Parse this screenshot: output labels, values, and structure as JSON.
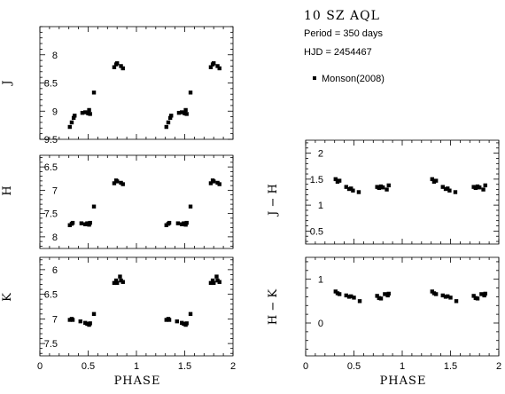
{
  "header": {
    "star_name": "10 SZ AQL",
    "period_text": "Period = 350 days",
    "hjd_text": "HJD = 2454467",
    "legend_label": "Monson(2008)"
  },
  "x_axis_label": "PHASE",
  "chart_data": [
    {
      "type": "scatter",
      "name": "J",
      "ylabel": "J",
      "xlim": [
        0,
        2
      ],
      "ylim": [
        9.5,
        7.5
      ],
      "yinverted": true,
      "x_ticks": [
        0,
        0.5,
        1,
        1.5,
        2
      ],
      "x_tick_labels": [],
      "y_ticks": [
        8,
        8.5,
        9,
        9.5
      ],
      "y_tick_labels": [
        "8",
        "8.5",
        "9",
        "9.5"
      ],
      "points": [
        {
          "x": 0.31,
          "y": 9.28
        },
        {
          "x": 0.33,
          "y": 9.2
        },
        {
          "x": 0.35,
          "y": 9.12
        },
        {
          "x": 0.36,
          "y": 9.08
        },
        {
          "x": 0.44,
          "y": 9.03
        },
        {
          "x": 0.47,
          "y": 9.02
        },
        {
          "x": 0.5,
          "y": 9.04
        },
        {
          "x": 0.51,
          "y": 8.98
        },
        {
          "x": 0.52,
          "y": 9.05
        },
        {
          "x": 0.56,
          "y": 8.67
        },
        {
          "x": 0.77,
          "y": 8.22
        },
        {
          "x": 0.79,
          "y": 8.17
        },
        {
          "x": 0.8,
          "y": 8.15
        },
        {
          "x": 0.84,
          "y": 8.2
        },
        {
          "x": 0.86,
          "y": 8.24
        },
        {
          "x": 1.31,
          "y": 9.28
        },
        {
          "x": 1.33,
          "y": 9.2
        },
        {
          "x": 1.35,
          "y": 9.12
        },
        {
          "x": 1.36,
          "y": 9.08
        },
        {
          "x": 1.44,
          "y": 9.03
        },
        {
          "x": 1.47,
          "y": 9.02
        },
        {
          "x": 1.5,
          "y": 9.04
        },
        {
          "x": 1.51,
          "y": 8.98
        },
        {
          "x": 1.52,
          "y": 9.05
        },
        {
          "x": 1.56,
          "y": 8.67
        },
        {
          "x": 1.77,
          "y": 8.22
        },
        {
          "x": 1.79,
          "y": 8.17
        },
        {
          "x": 1.8,
          "y": 8.15
        },
        {
          "x": 1.84,
          "y": 8.2
        },
        {
          "x": 1.86,
          "y": 8.24
        }
      ]
    },
    {
      "type": "scatter",
      "name": "H",
      "ylabel": "H",
      "xlim": [
        0,
        2
      ],
      "ylim": [
        8.25,
        6.25
      ],
      "yinverted": true,
      "x_ticks": [
        0,
        0.5,
        1,
        1.5,
        2
      ],
      "x_tick_labels": [],
      "y_ticks": [
        6.5,
        7,
        7.5,
        8
      ],
      "y_tick_labels": [
        "6.5",
        "7",
        "7.5",
        "8"
      ],
      "points": [
        {
          "x": 0.31,
          "y": 7.75
        },
        {
          "x": 0.33,
          "y": 7.72
        },
        {
          "x": 0.34,
          "y": 7.7
        },
        {
          "x": 0.43,
          "y": 7.71
        },
        {
          "x": 0.47,
          "y": 7.73
        },
        {
          "x": 0.49,
          "y": 7.71
        },
        {
          "x": 0.51,
          "y": 7.74
        },
        {
          "x": 0.52,
          "y": 7.7
        },
        {
          "x": 0.56,
          "y": 7.35
        },
        {
          "x": 0.77,
          "y": 6.85
        },
        {
          "x": 0.79,
          "y": 6.79
        },
        {
          "x": 0.8,
          "y": 6.81
        },
        {
          "x": 0.84,
          "y": 6.84
        },
        {
          "x": 0.86,
          "y": 6.87
        },
        {
          "x": 1.31,
          "y": 7.75
        },
        {
          "x": 1.33,
          "y": 7.72
        },
        {
          "x": 1.34,
          "y": 7.7
        },
        {
          "x": 1.43,
          "y": 7.71
        },
        {
          "x": 1.47,
          "y": 7.73
        },
        {
          "x": 1.49,
          "y": 7.71
        },
        {
          "x": 1.51,
          "y": 7.74
        },
        {
          "x": 1.52,
          "y": 7.7
        },
        {
          "x": 1.56,
          "y": 7.35
        },
        {
          "x": 1.77,
          "y": 6.85
        },
        {
          "x": 1.79,
          "y": 6.79
        },
        {
          "x": 1.8,
          "y": 6.81
        },
        {
          "x": 1.84,
          "y": 6.84
        },
        {
          "x": 1.86,
          "y": 6.87
        }
      ]
    },
    {
      "type": "scatter",
      "name": "K",
      "ylabel": "K",
      "xlim": [
        0,
        2
      ],
      "ylim": [
        7.75,
        5.75
      ],
      "yinverted": true,
      "x_ticks": [
        0,
        0.5,
        1,
        1.5,
        2
      ],
      "x_tick_labels": [
        "0",
        "0.5",
        "1",
        "1.5",
        "2"
      ],
      "y_ticks": [
        6,
        6.5,
        7,
        7.5
      ],
      "y_tick_labels": [
        "6",
        "6.5",
        "7",
        "7.5"
      ],
      "points": [
        {
          "x": 0.31,
          "y": 7.02
        },
        {
          "x": 0.33,
          "y": 7.0
        },
        {
          "x": 0.34,
          "y": 7.02
        },
        {
          "x": 0.42,
          "y": 7.05
        },
        {
          "x": 0.47,
          "y": 7.08
        },
        {
          "x": 0.49,
          "y": 7.1
        },
        {
          "x": 0.51,
          "y": 7.12
        },
        {
          "x": 0.52,
          "y": 7.09
        },
        {
          "x": 0.56,
          "y": 6.9
        },
        {
          "x": 0.77,
          "y": 6.27
        },
        {
          "x": 0.79,
          "y": 6.22
        },
        {
          "x": 0.8,
          "y": 6.27
        },
        {
          "x": 0.83,
          "y": 6.14
        },
        {
          "x": 0.84,
          "y": 6.22
        },
        {
          "x": 0.86,
          "y": 6.25
        },
        {
          "x": 1.31,
          "y": 7.02
        },
        {
          "x": 1.33,
          "y": 7.0
        },
        {
          "x": 1.34,
          "y": 7.02
        },
        {
          "x": 1.42,
          "y": 7.05
        },
        {
          "x": 1.47,
          "y": 7.08
        },
        {
          "x": 1.49,
          "y": 7.1
        },
        {
          "x": 1.51,
          "y": 7.12
        },
        {
          "x": 1.52,
          "y": 7.09
        },
        {
          "x": 1.56,
          "y": 6.9
        },
        {
          "x": 1.77,
          "y": 6.27
        },
        {
          "x": 1.79,
          "y": 6.22
        },
        {
          "x": 1.8,
          "y": 6.27
        },
        {
          "x": 1.83,
          "y": 6.14
        },
        {
          "x": 1.84,
          "y": 6.22
        },
        {
          "x": 1.86,
          "y": 6.25
        }
      ]
    },
    {
      "type": "scatter",
      "name": "J-H",
      "ylabel": "J − H",
      "xlim": [
        0,
        2
      ],
      "ylim": [
        0.25,
        2.25
      ],
      "yinverted": false,
      "x_ticks": [
        0,
        0.5,
        1,
        1.5,
        2
      ],
      "x_tick_labels": [],
      "y_ticks": [
        0.5,
        1,
        1.5,
        2
      ],
      "y_tick_labels": [
        "0.5",
        "1",
        "1.5",
        "2"
      ],
      "points": [
        {
          "x": 0.31,
          "y": 1.5
        },
        {
          "x": 0.33,
          "y": 1.45
        },
        {
          "x": 0.35,
          "y": 1.47
        },
        {
          "x": 0.42,
          "y": 1.35
        },
        {
          "x": 0.45,
          "y": 1.31
        },
        {
          "x": 0.47,
          "y": 1.32
        },
        {
          "x": 0.49,
          "y": 1.28
        },
        {
          "x": 0.55,
          "y": 1.25
        },
        {
          "x": 0.74,
          "y": 1.35
        },
        {
          "x": 0.76,
          "y": 1.33
        },
        {
          "x": 0.78,
          "y": 1.36
        },
        {
          "x": 0.8,
          "y": 1.34
        },
        {
          "x": 0.84,
          "y": 1.3
        },
        {
          "x": 0.86,
          "y": 1.38
        },
        {
          "x": 1.31,
          "y": 1.5
        },
        {
          "x": 1.33,
          "y": 1.45
        },
        {
          "x": 1.35,
          "y": 1.47
        },
        {
          "x": 1.42,
          "y": 1.35
        },
        {
          "x": 1.45,
          "y": 1.31
        },
        {
          "x": 1.47,
          "y": 1.32
        },
        {
          "x": 1.49,
          "y": 1.28
        },
        {
          "x": 1.55,
          "y": 1.25
        },
        {
          "x": 1.74,
          "y": 1.35
        },
        {
          "x": 1.76,
          "y": 1.33
        },
        {
          "x": 1.78,
          "y": 1.36
        },
        {
          "x": 1.8,
          "y": 1.34
        },
        {
          "x": 1.84,
          "y": 1.3
        },
        {
          "x": 1.86,
          "y": 1.38
        }
      ]
    },
    {
      "type": "scatter",
      "name": "H-K",
      "ylabel": "H − K",
      "xlim": [
        0,
        2
      ],
      "ylim": [
        -0.75,
        1.5
      ],
      "yinverted": false,
      "x_ticks": [
        0,
        0.5,
        1,
        1.5,
        2
      ],
      "x_tick_labels": [
        "0",
        "0.5",
        "1",
        "1.5",
        "2"
      ],
      "y_ticks": [
        0,
        1
      ],
      "y_tick_labels": [
        "0",
        "1"
      ],
      "points": [
        {
          "x": 0.31,
          "y": 0.72
        },
        {
          "x": 0.33,
          "y": 0.68
        },
        {
          "x": 0.35,
          "y": 0.66
        },
        {
          "x": 0.42,
          "y": 0.63
        },
        {
          "x": 0.45,
          "y": 0.6
        },
        {
          "x": 0.47,
          "y": 0.61
        },
        {
          "x": 0.5,
          "y": 0.58
        },
        {
          "x": 0.56,
          "y": 0.5
        },
        {
          "x": 0.74,
          "y": 0.62
        },
        {
          "x": 0.76,
          "y": 0.57
        },
        {
          "x": 0.78,
          "y": 0.56
        },
        {
          "x": 0.82,
          "y": 0.66
        },
        {
          "x": 0.85,
          "y": 0.63
        },
        {
          "x": 0.86,
          "y": 0.67
        },
        {
          "x": 1.31,
          "y": 0.72
        },
        {
          "x": 1.33,
          "y": 0.68
        },
        {
          "x": 1.35,
          "y": 0.66
        },
        {
          "x": 1.42,
          "y": 0.63
        },
        {
          "x": 1.45,
          "y": 0.6
        },
        {
          "x": 1.47,
          "y": 0.61
        },
        {
          "x": 1.5,
          "y": 0.58
        },
        {
          "x": 1.56,
          "y": 0.5
        },
        {
          "x": 1.74,
          "y": 0.62
        },
        {
          "x": 1.76,
          "y": 0.57
        },
        {
          "x": 1.78,
          "y": 0.56
        },
        {
          "x": 1.82,
          "y": 0.66
        },
        {
          "x": 1.85,
          "y": 0.63
        },
        {
          "x": 1.86,
          "y": 0.67
        }
      ]
    }
  ]
}
